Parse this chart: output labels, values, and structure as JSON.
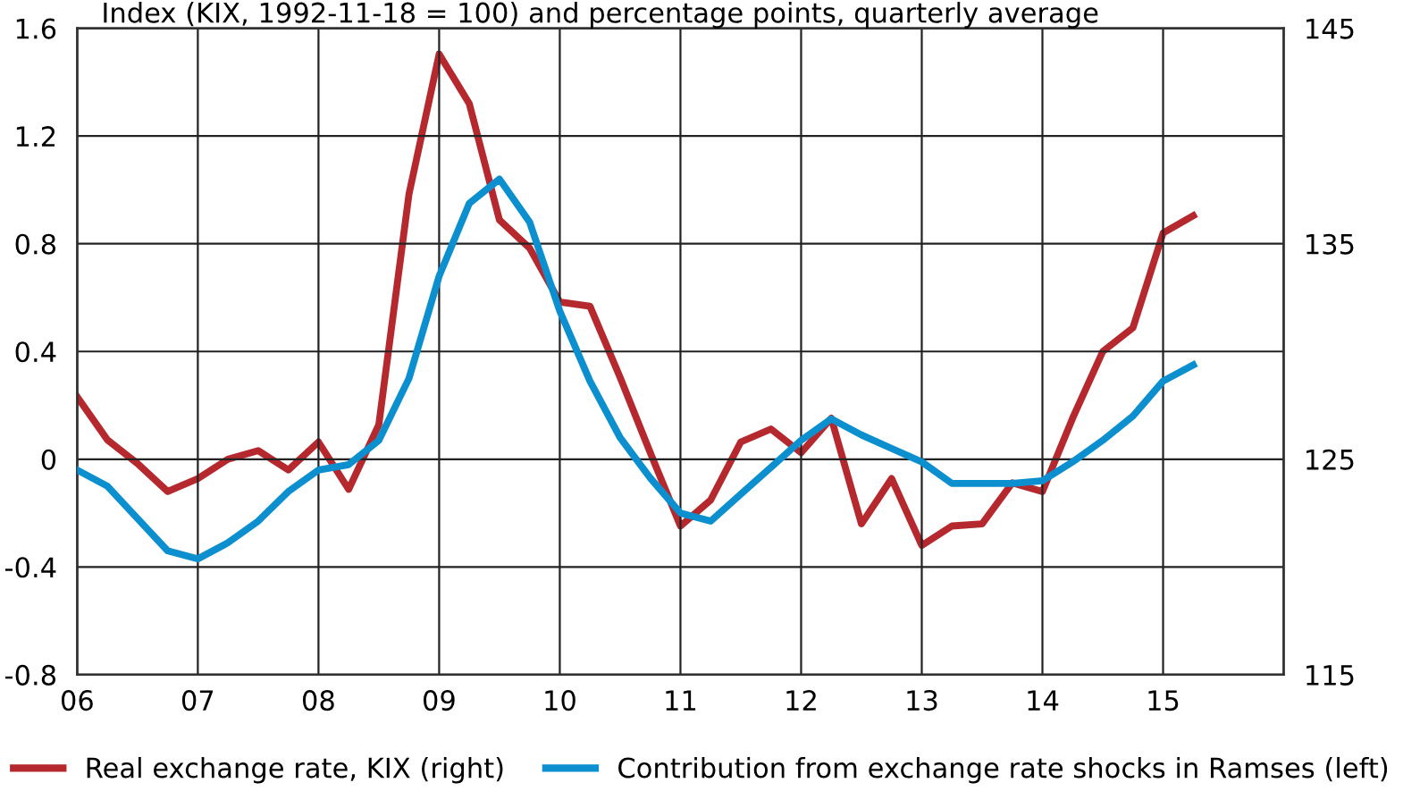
{
  "chart_data": {
    "type": "line",
    "subtitle": "Index (KIX, 1992-11-18 = 100) and percentage points, quarterly average",
    "x": [
      2006.0,
      2006.25,
      2006.5,
      2006.75,
      2007.0,
      2007.25,
      2007.5,
      2007.75,
      2008.0,
      2008.25,
      2008.5,
      2008.75,
      2009.0,
      2009.25,
      2009.5,
      2009.75,
      2010.0,
      2010.25,
      2010.5,
      2010.75,
      2011.0,
      2011.25,
      2011.5,
      2011.75,
      2012.0,
      2012.25,
      2012.5,
      2012.75,
      2013.0,
      2013.25,
      2013.5,
      2013.75,
      2014.0,
      2014.25,
      2014.5,
      2014.75,
      2015.0,
      2015.25
    ],
    "series": [
      {
        "name": "Real exchange rate, KIX (right)",
        "color": "#b5292e",
        "axis": "y2",
        "values": [
          127.9,
          125.9,
          124.8,
          123.5,
          124.1,
          125.0,
          125.4,
          124.5,
          125.8,
          123.6,
          126.6,
          137.3,
          143.8,
          141.5,
          136.1,
          134.8,
          132.3,
          132.1,
          128.8,
          125.3,
          121.9,
          123.1,
          125.8,
          126.4,
          125.3,
          126.9,
          122.0,
          124.1,
          121.0,
          121.9,
          122.0,
          123.9,
          123.5,
          126.9,
          130.0,
          131.1,
          135.5,
          136.3
        ]
      },
      {
        "name": "Contribution from exchange rate shocks in Ramses (left)",
        "color": "#0b8fcf",
        "values": [
          -0.04,
          -0.1,
          -0.22,
          -0.34,
          -0.37,
          -0.31,
          -0.23,
          -0.12,
          -0.04,
          -0.02,
          0.07,
          0.3,
          0.68,
          0.95,
          1.04,
          0.88,
          0.55,
          0.29,
          0.08,
          -0.07,
          -0.2,
          -0.23,
          -0.13,
          -0.03,
          0.07,
          0.15,
          0.09,
          0.04,
          -0.01,
          -0.09,
          -0.09,
          -0.09,
          -0.08,
          -0.01,
          0.07,
          0.16,
          0.29,
          0.35
        ]
      }
    ],
    "xlim": [
      2006,
      2016
    ],
    "xticks": [
      {
        "value": 2006,
        "label": "06"
      },
      {
        "value": 2007,
        "label": "07"
      },
      {
        "value": 2008,
        "label": "08"
      },
      {
        "value": 2009,
        "label": "09"
      },
      {
        "value": 2010,
        "label": "10"
      },
      {
        "value": 2011,
        "label": "11"
      },
      {
        "value": 2012,
        "label": "12"
      },
      {
        "value": 2013,
        "label": "13"
      },
      {
        "value": 2014,
        "label": "14"
      },
      {
        "value": 2015,
        "label": "15"
      },
      {
        "value": 2016,
        "label": null
      }
    ],
    "ylim": [
      -0.8,
      1.6
    ],
    "yticks": [
      -0.8,
      -0.4,
      0,
      0.4,
      0.8,
      1.2,
      1.6
    ],
    "y2lim": [
      115,
      145
    ],
    "y2ticks": [
      115,
      125,
      135,
      145
    ],
    "grid": true,
    "legend": "bottom",
    "marker": "none",
    "line_style": "solid"
  }
}
